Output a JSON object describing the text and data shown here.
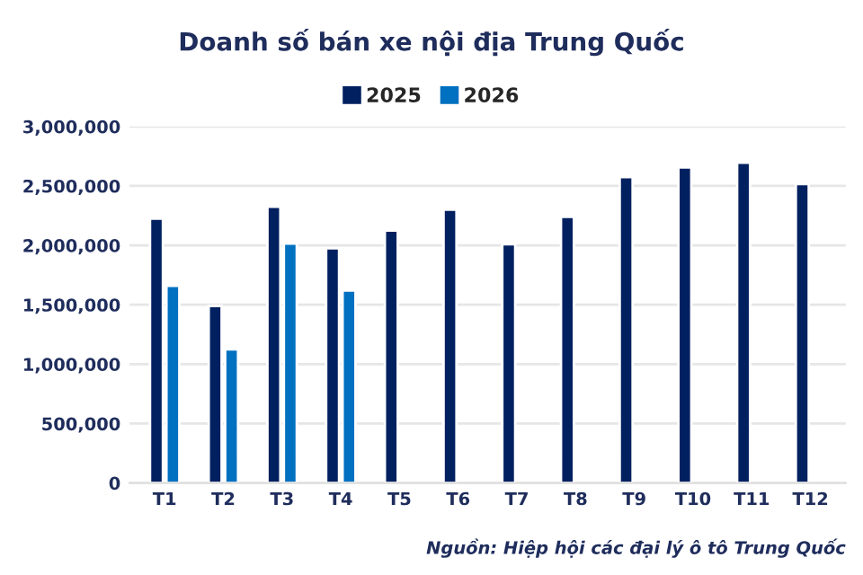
{
  "chart_data": {
    "type": "bar",
    "title": "Doanh số bán xe nội địa Trung Quốc",
    "categories": [
      "T1",
      "T2",
      "T3",
      "T4",
      "T5",
      "T6",
      "T7",
      "T8",
      "T9",
      "T10",
      "T11",
      "T12"
    ],
    "series": [
      {
        "name": "2025",
        "color": "#002060",
        "values": [
          2225000,
          1490000,
          2325000,
          1975000,
          2125000,
          2300000,
          2010000,
          2240000,
          2575000,
          2655000,
          2695000,
          2515000
        ]
      },
      {
        "name": "2026",
        "color": "#0070c0",
        "values": [
          1660000,
          1125000,
          2015000,
          1620000,
          null,
          null,
          null,
          null,
          null,
          null,
          null,
          null
        ]
      }
    ],
    "ylim": [
      0,
      3000000
    ],
    "yticks": [
      {
        "value": 0,
        "label": "0"
      },
      {
        "value": 500000,
        "label": "500,000"
      },
      {
        "value": 1000000,
        "label": "1,000,000"
      },
      {
        "value": 1500000,
        "label": "1,500,000"
      },
      {
        "value": 2000000,
        "label": "2,000,000"
      },
      {
        "value": 2500000,
        "label": "2,500,000"
      },
      {
        "value": 3000000,
        "label": "3,000,000"
      }
    ],
    "grid": "y",
    "legend": "top",
    "annotations": [
      "Nguồn: Hiệp hội các đại lý ô tô Trung Quốc"
    ]
  }
}
